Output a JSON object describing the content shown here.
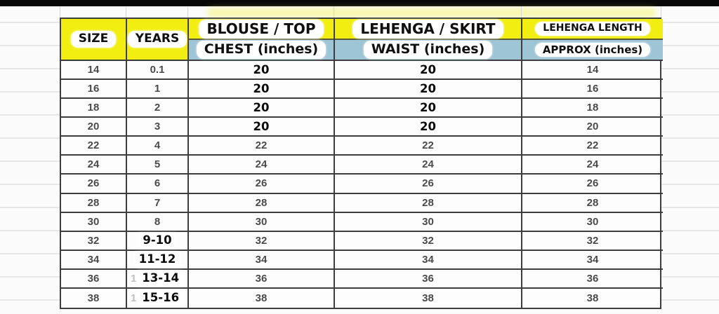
{
  "colors": {
    "top_bar": "#070707",
    "header_yellow": "#f2ee11",
    "header_blue": "#9ec5d5",
    "grid_line": "#3d3d3d",
    "value_gray": "#4a4a4a",
    "value_black": "#0b0b0b"
  },
  "table": {
    "headers": {
      "size": {
        "label": "SIZE"
      },
      "years": {
        "label": "YEARS"
      },
      "chest": {
        "line1": "BLOUSE / TOP",
        "line2": "CHEST (inches)"
      },
      "waist": {
        "line1": "LEHENGA / SKIRT",
        "line2": "WAIST (inches)"
      },
      "length": {
        "line1": "LEHENGA LENGTH",
        "line2": "APPROX (inches)"
      }
    },
    "rows": [
      {
        "size": "14",
        "years": "0.1",
        "chest": "20",
        "waist": "20",
        "length": "14",
        "chest_bold": true,
        "waist_bold": true
      },
      {
        "size": "16",
        "years": "1",
        "chest": "20",
        "waist": "20",
        "length": "16",
        "chest_bold": true,
        "waist_bold": true
      },
      {
        "size": "18",
        "years": "2",
        "chest": "20",
        "waist": "20",
        "length": "18",
        "chest_bold": true,
        "waist_bold": true
      },
      {
        "size": "20",
        "years": "3",
        "chest": "20",
        "waist": "20",
        "length": "20",
        "chest_bold": true,
        "waist_bold": true
      },
      {
        "size": "22",
        "years": "4",
        "chest": "22",
        "waist": "22",
        "length": "22"
      },
      {
        "size": "24",
        "years": "5",
        "chest": "24",
        "waist": "24",
        "length": "24"
      },
      {
        "size": "26",
        "years": "6",
        "chest": "26",
        "waist": "26",
        "length": "26"
      },
      {
        "size": "28",
        "years": "7",
        "chest": "28",
        "waist": "28",
        "length": "28"
      },
      {
        "size": "30",
        "years": "8",
        "chest": "30",
        "waist": "30",
        "length": "30"
      },
      {
        "size": "32",
        "years": "9-10",
        "chest": "32",
        "waist": "32",
        "length": "32",
        "years_bold": true
      },
      {
        "size": "34",
        "years": "11-12",
        "chest": "34",
        "waist": "34",
        "length": "34",
        "years_bold": true
      },
      {
        "size": "36",
        "years": "13-14",
        "chest": "36",
        "waist": "36",
        "length": "36",
        "years_bold": true,
        "years_ghost": "1"
      },
      {
        "size": "38",
        "years": "15-16",
        "chest": "38",
        "waist": "38",
        "length": "38",
        "years_bold": true,
        "years_ghost": "1"
      }
    ]
  }
}
